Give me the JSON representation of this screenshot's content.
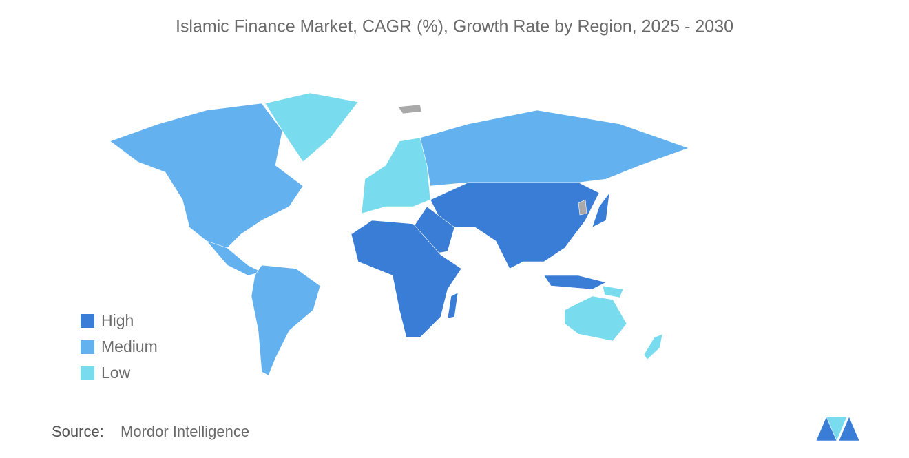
{
  "title": "Islamic Finance Market, CAGR (%), Growth Rate by Region, 2025 - 2030",
  "legend": [
    {
      "label": "High",
      "color": "#3a7dd6"
    },
    {
      "label": "Medium",
      "color": "#64b1f0"
    },
    {
      "label": "Low",
      "color": "#78dcee"
    }
  ],
  "source": {
    "label": "Source:",
    "text": "Mordor Intelligence"
  }
}
